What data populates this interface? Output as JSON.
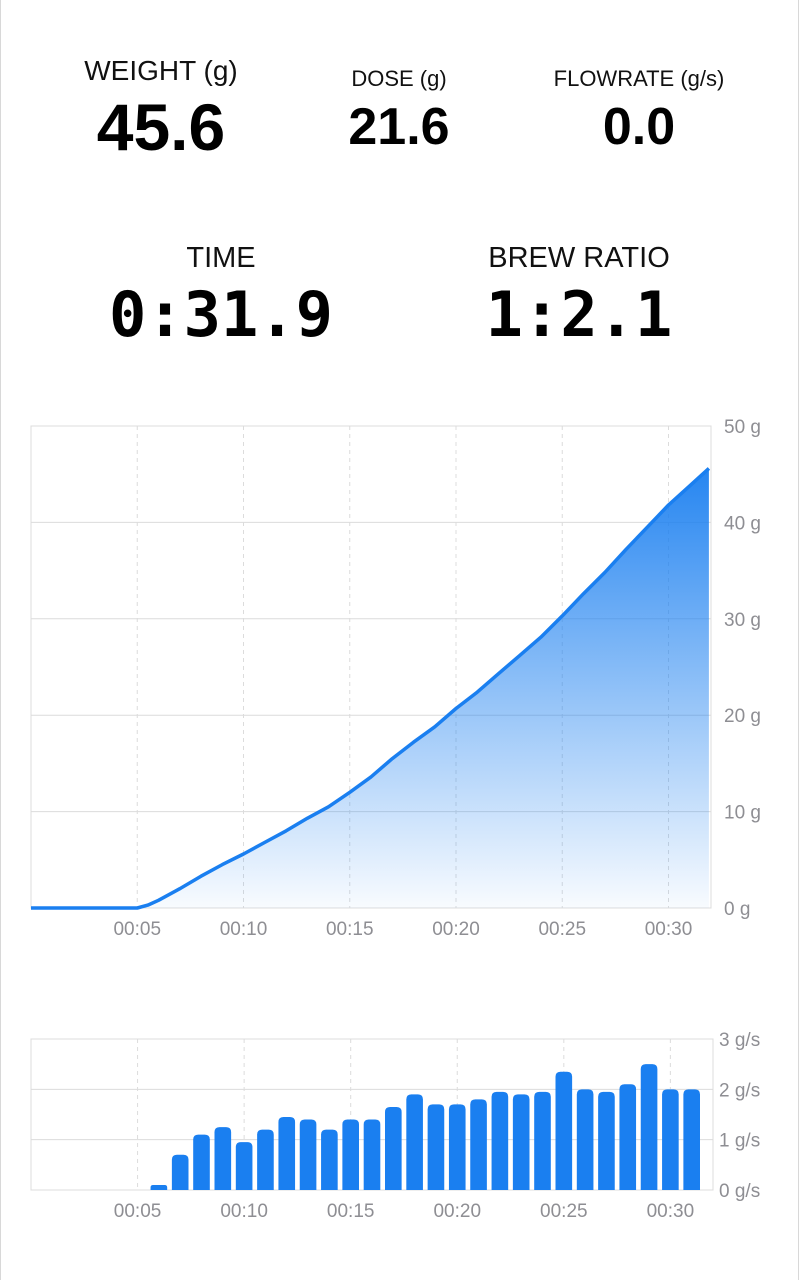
{
  "stats": {
    "weight": {
      "label": "WEIGHT (g)",
      "value": "45.6"
    },
    "dose": {
      "label": "DOSE (g)",
      "value": "21.6"
    },
    "flowrate": {
      "label": "FLOWRATE (g/s)",
      "value": "0.0"
    },
    "time": {
      "label": "TIME",
      "value": "0:31.9"
    },
    "brew_ratio": {
      "label": "BREW RATIO",
      "value": "1:2.1"
    }
  },
  "colors": {
    "accent": "#1a7ff0",
    "grid": "#dcdcdc",
    "axis_text": "#8e8e93"
  },
  "chart_data": [
    {
      "type": "area",
      "x_ticks": [
        "00:05",
        "00:10",
        "00:15",
        "00:20",
        "00:25",
        "00:30"
      ],
      "y_ticks": [
        "0 g",
        "10 g",
        "20 g",
        "30 g",
        "40 g",
        "50 g"
      ],
      "xlim": [
        0,
        32
      ],
      "ylim": [
        0,
        50
      ],
      "grid": true,
      "x": [
        0,
        5,
        5.5,
        6,
        7,
        8,
        9,
        10,
        11,
        12,
        13,
        14,
        15,
        16,
        17,
        18,
        19,
        20,
        21,
        22,
        23,
        24,
        25,
        26,
        27,
        28,
        29,
        30,
        31,
        31.9
      ],
      "y": [
        0,
        0,
        0.3,
        0.8,
        2,
        3.3,
        4.5,
        5.6,
        6.8,
        8,
        9.3,
        10.5,
        12,
        13.6,
        15.5,
        17.2,
        18.8,
        20.7,
        22.4,
        24.3,
        26.2,
        28.1,
        30.3,
        32.6,
        34.8,
        37.2,
        39.5,
        41.8,
        43.8,
        45.6
      ]
    },
    {
      "type": "bar",
      "x_ticks": [
        "00:05",
        "00:10",
        "00:15",
        "00:20",
        "00:25",
        "00:30"
      ],
      "y_ticks": [
        "0 g/s",
        "1 g/s",
        "2 g/s",
        "3 g/s"
      ],
      "xlim": [
        0,
        32
      ],
      "ylim": [
        0,
        3
      ],
      "grid": true,
      "x": [
        6,
        7,
        8,
        9,
        10,
        11,
        12,
        13,
        14,
        15,
        16,
        17,
        18,
        19,
        20,
        21,
        22,
        23,
        24,
        25,
        26,
        27,
        28,
        29,
        30,
        31
      ],
      "values": [
        0.1,
        0.7,
        1.1,
        1.25,
        0.95,
        1.2,
        1.45,
        1.4,
        1.2,
        1.4,
        1.4,
        1.65,
        1.9,
        1.7,
        1.7,
        1.8,
        1.95,
        1.9,
        1.95,
        2.35,
        2.0,
        1.95,
        2.1,
        2.5,
        2.0,
        2.0
      ]
    }
  ]
}
